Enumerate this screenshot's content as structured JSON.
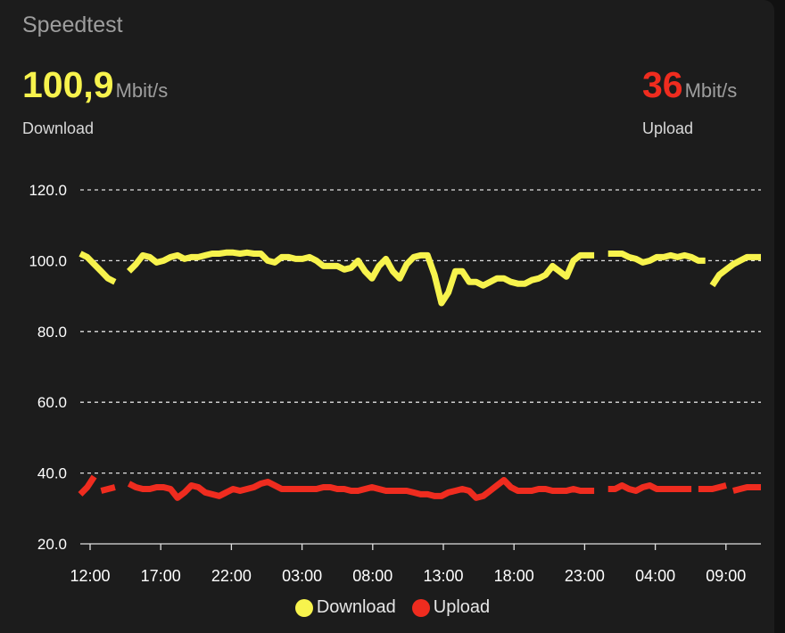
{
  "card": {
    "title": "Speedtest"
  },
  "download": {
    "value": "100,9",
    "unit": "Mbit/s",
    "label": "Download",
    "color": "#f7f34d"
  },
  "upload": {
    "value": "36",
    "unit": "Mbit/s",
    "label": "Upload",
    "color": "#ef2c1f"
  },
  "chart_data": {
    "type": "line",
    "ylim": [
      20,
      120
    ],
    "yticks": [
      "20.0",
      "40.0",
      "60.0",
      "80.0",
      "100.0",
      "120.0"
    ],
    "xticks": [
      "12:00",
      "17:00",
      "22:00",
      "03:00",
      "08:00",
      "13:00",
      "18:00",
      "23:00",
      "04:00",
      "09:00"
    ],
    "grid": true,
    "legend": "bottom-center",
    "series": [
      {
        "name": "Download",
        "color": "#f7f34d",
        "segments": [
          [
            [
              0,
              102
            ],
            [
              1,
              101
            ],
            [
              2,
              99
            ],
            [
              3,
              97
            ],
            [
              4,
              95
            ],
            [
              5,
              94
            ]
          ],
          [
            [
              7,
              97
            ],
            [
              8,
              99
            ],
            [
              9,
              101.5
            ],
            [
              10,
              101
            ],
            [
              11,
              99.5
            ],
            [
              12,
              100
            ],
            [
              13,
              101
            ],
            [
              14,
              101.5
            ],
            [
              15,
              100.5
            ],
            [
              16,
              101
            ],
            [
              17,
              101
            ],
            [
              18,
              101.5
            ],
            [
              19,
              102
            ],
            [
              20,
              102
            ],
            [
              21,
              102.3
            ],
            [
              22,
              102.3
            ],
            [
              23,
              102
            ],
            [
              24,
              102.3
            ],
            [
              25,
              102
            ],
            [
              26,
              102
            ],
            [
              27,
              100
            ],
            [
              28,
              99.5
            ],
            [
              29,
              101
            ],
            [
              30,
              101
            ],
            [
              31,
              100.5
            ],
            [
              32,
              100.5
            ],
            [
              33,
              101
            ],
            [
              34,
              100
            ],
            [
              35,
              98.5
            ],
            [
              36,
              98.5
            ],
            [
              37,
              98.5
            ],
            [
              38,
              97.5
            ],
            [
              39,
              98
            ],
            [
              40,
              100
            ],
            [
              41,
              97
            ],
            [
              42,
              95
            ],
            [
              43,
              98.5
            ],
            [
              44,
              100.5
            ],
            [
              45,
              97
            ],
            [
              46,
              95
            ],
            [
              47,
              99
            ],
            [
              48,
              101
            ],
            [
              49,
              101.5
            ],
            [
              50,
              101.5
            ],
            [
              51,
              96
            ],
            [
              52,
              88
            ],
            [
              53,
              91
            ],
            [
              54,
              97
            ],
            [
              55,
              97
            ],
            [
              56,
              94
            ],
            [
              57,
              94
            ],
            [
              58,
              93
            ],
            [
              59,
              94
            ],
            [
              60,
              95
            ],
            [
              61,
              95
            ],
            [
              62,
              94
            ],
            [
              63,
              93.5
            ],
            [
              64,
              93.5
            ],
            [
              65,
              94.5
            ],
            [
              66,
              95
            ],
            [
              67,
              96
            ],
            [
              68,
              98.5
            ],
            [
              69,
              97
            ],
            [
              70,
              95.5
            ],
            [
              71,
              100
            ],
            [
              72,
              101.5
            ],
            [
              73,
              101.5
            ],
            [
              74,
              101.5
            ]
          ],
          [
            [
              76,
              102
            ],
            [
              77,
              102
            ],
            [
              78,
              102
            ],
            [
              79,
              101
            ],
            [
              80,
              100.5
            ],
            [
              81,
              99.5
            ],
            [
              82,
              100
            ],
            [
              83,
              101
            ],
            [
              84,
              101
            ],
            [
              85,
              101.5
            ],
            [
              86,
              101
            ],
            [
              87,
              101.5
            ],
            [
              88,
              101
            ],
            [
              89,
              100
            ],
            [
              90,
              100
            ]
          ],
          [
            [
              91,
              93
            ],
            [
              92,
              96
            ],
            [
              93,
              97.5
            ],
            [
              94,
              99
            ],
            [
              95,
              100
            ],
            [
              96,
              101
            ],
            [
              97,
              101
            ],
            [
              98,
              101
            ]
          ]
        ]
      },
      {
        "name": "Upload",
        "color": "#ef2c1f",
        "segments": [
          [
            [
              0,
              34
            ],
            [
              1,
              36
            ],
            [
              2,
              39
            ]
          ],
          [
            [
              3,
              35
            ],
            [
              4,
              35.5
            ],
            [
              5,
              36
            ]
          ],
          [
            [
              7,
              37
            ],
            [
              8,
              36
            ],
            [
              9,
              35.5
            ],
            [
              10,
              35.5
            ],
            [
              11,
              36
            ],
            [
              12,
              36
            ],
            [
              13,
              35.5
            ],
            [
              14,
              33
            ],
            [
              15,
              34.5
            ],
            [
              16,
              36.5
            ],
            [
              17,
              36
            ],
            [
              18,
              34.5
            ],
            [
              19,
              34
            ],
            [
              20,
              33.5
            ],
            [
              21,
              34.5
            ],
            [
              22,
              35.5
            ],
            [
              23,
              35
            ],
            [
              24,
              35.5
            ],
            [
              25,
              36
            ],
            [
              26,
              37
            ],
            [
              27,
              37.5
            ],
            [
              28,
              36.5
            ],
            [
              29,
              35.5
            ],
            [
              30,
              35.5
            ],
            [
              31,
              35.5
            ],
            [
              32,
              35.5
            ],
            [
              33,
              35.5
            ],
            [
              34,
              35.5
            ],
            [
              35,
              36
            ],
            [
              36,
              36
            ],
            [
              37,
              35.5
            ],
            [
              38,
              35.5
            ],
            [
              39,
              35
            ],
            [
              40,
              35
            ],
            [
              41,
              35.5
            ],
            [
              42,
              36
            ],
            [
              43,
              35.5
            ],
            [
              44,
              35
            ],
            [
              45,
              35
            ],
            [
              46,
              35
            ],
            [
              47,
              35
            ],
            [
              48,
              34.5
            ],
            [
              49,
              34
            ],
            [
              50,
              34
            ],
            [
              51,
              33.5
            ],
            [
              52,
              33.5
            ],
            [
              53,
              34.5
            ],
            [
              54,
              35
            ],
            [
              55,
              35.5
            ],
            [
              56,
              35
            ],
            [
              57,
              33
            ],
            [
              58,
              33.5
            ],
            [
              59,
              35
            ],
            [
              60,
              36.5
            ],
            [
              61,
              38
            ],
            [
              62,
              36
            ],
            [
              63,
              35
            ],
            [
              64,
              35
            ],
            [
              65,
              35
            ],
            [
              66,
              35.5
            ],
            [
              67,
              35.5
            ],
            [
              68,
              35
            ],
            [
              69,
              35
            ],
            [
              70,
              35
            ],
            [
              71,
              35.5
            ],
            [
              72,
              35
            ],
            [
              73,
              35
            ],
            [
              74,
              35
            ]
          ],
          [
            [
              76,
              35.5
            ],
            [
              77,
              35.5
            ],
            [
              78,
              36.5
            ],
            [
              79,
              35.5
            ],
            [
              80,
              35
            ],
            [
              81,
              36
            ],
            [
              82,
              36.5
            ],
            [
              83,
              35.5
            ],
            [
              84,
              35.5
            ],
            [
              85,
              35.5
            ],
            [
              86,
              35.5
            ],
            [
              87,
              35.5
            ],
            [
              88,
              35.5
            ]
          ],
          [
            [
              89,
              35.5
            ],
            [
              90,
              35.5
            ],
            [
              91,
              35.5
            ],
            [
              92,
              36
            ],
            [
              93,
              36.5
            ]
          ],
          [
            [
              94,
              35
            ],
            [
              95,
              35.5
            ],
            [
              96,
              36
            ],
            [
              97,
              36
            ],
            [
              98,
              36
            ]
          ]
        ]
      }
    ]
  }
}
